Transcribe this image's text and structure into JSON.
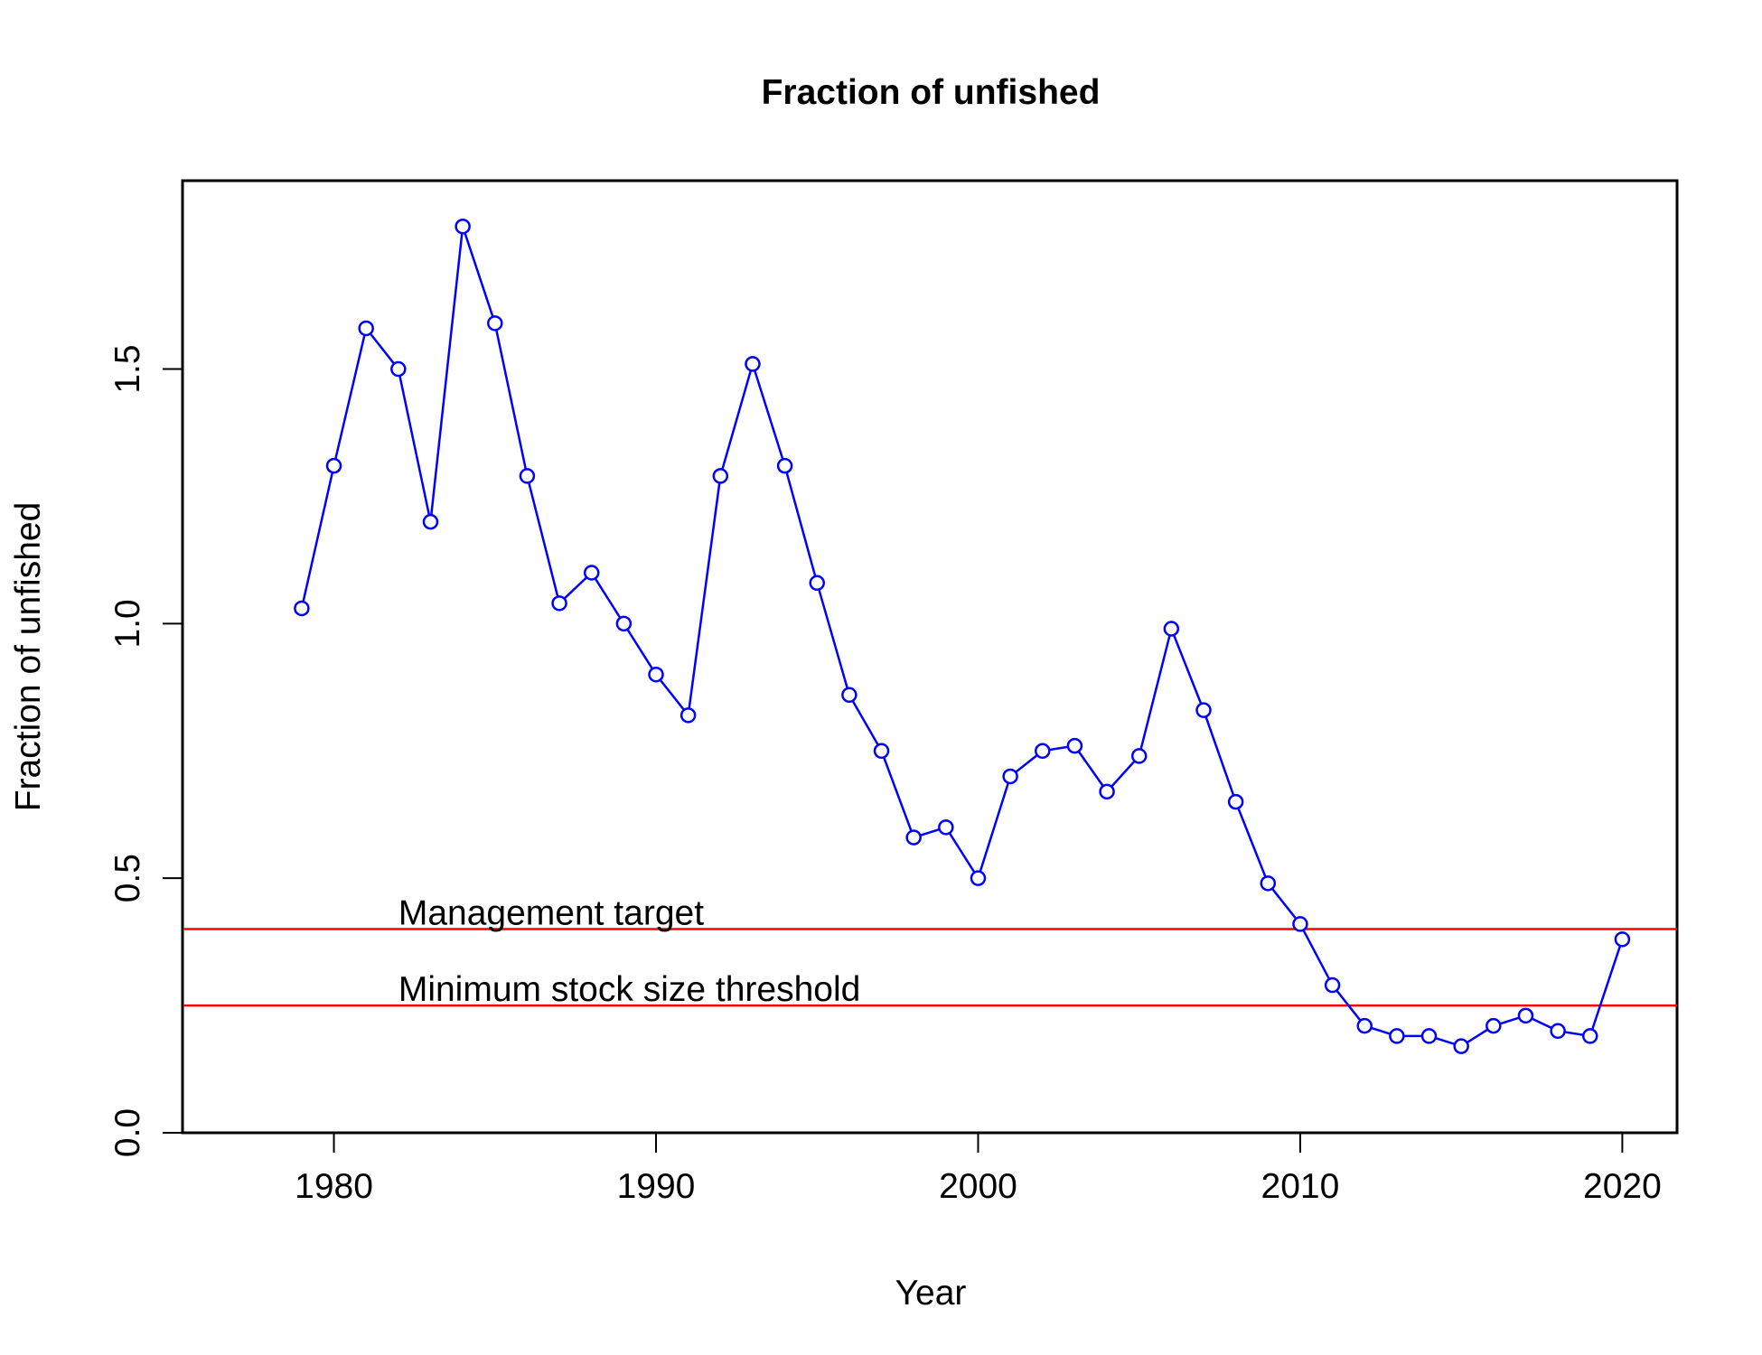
{
  "chart_data": {
    "type": "line",
    "title": "Fraction of unfished",
    "xlabel": "Year",
    "ylabel": "Fraction of unfished",
    "xlim": [
      1975.3,
      1981.7
    ],
    "ylim": [
      0,
      1.87
    ],
    "x_ticks": [
      "1980",
      "1990",
      "2000",
      "2010",
      "2020"
    ],
    "y_ticks": [
      "0.0",
      "0.5",
      "1.0",
      "1.5"
    ],
    "grid": false,
    "series_color": "#0000ff",
    "reference_color": "#ff0000",
    "series": [
      {
        "x": [
          1979,
          1980,
          1981,
          1982,
          1983,
          1984,
          1985,
          1986,
          1987,
          1988,
          1989,
          1990,
          1991,
          1992,
          1993,
          1994,
          1995,
          1996,
          1997,
          1998,
          1999,
          2000,
          2001,
          2002,
          2003,
          2004,
          2005,
          2006,
          2007,
          2008,
          2009,
          2010,
          2011,
          2012,
          2013,
          2014,
          2015,
          2016,
          2017,
          2018,
          2019,
          2020
        ],
        "values": [
          1.03,
          1.31,
          1.58,
          1.5,
          1.2,
          1.78,
          1.59,
          1.29,
          1.04,
          1.1,
          1.0,
          0.9,
          0.82,
          1.29,
          1.51,
          1.31,
          1.08,
          0.86,
          0.75,
          0.58,
          0.6,
          0.5,
          0.7,
          0.75,
          0.76,
          0.67,
          0.74,
          0.99,
          0.83,
          0.65,
          0.49,
          0.41,
          0.29,
          0.21,
          0.19,
          0.19,
          0.17,
          0.21,
          0.23,
          0.2,
          0.19,
          0.38
        ]
      }
    ],
    "reference_lines": [
      {
        "label": "Management target",
        "y": 0.4
      },
      {
        "label": "Minimum stock size threshold",
        "y": 0.25
      }
    ]
  }
}
